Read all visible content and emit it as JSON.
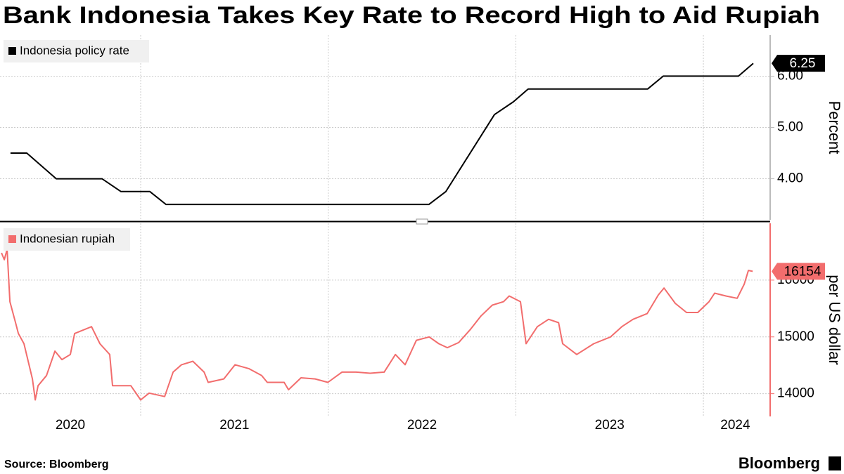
{
  "title": "Bank Indonesia Takes Key Rate to Record High to Aid Rupiah",
  "source": "Source: Bloomberg",
  "brand": "Bloomberg",
  "chart_data": [
    {
      "type": "line",
      "ylabel": "Percent",
      "axis_color": "#bbbbbb",
      "x": [
        2020.306,
        2020.393,
        2020.55,
        2020.794,
        2020.895,
        2021.049,
        2021.135,
        2022.537,
        2022.627,
        2022.886,
        2022.987,
        2023.066,
        2023.703,
        2023.786,
        2024.187,
        2024.266
      ],
      "series": [
        {
          "name": "Indonesia policy rate",
          "color": "#000000",
          "values": [
            4.5,
            4.5,
            4.0,
            4.0,
            3.75,
            3.75,
            3.5,
            3.5,
            3.75,
            5.25,
            5.5,
            5.75,
            5.75,
            6.0,
            6.0,
            6.25
          ]
        }
      ],
      "xlim": [
        2020.25,
        2024.356
      ],
      "ylim": [
        3.2,
        6.8
      ],
      "yticks": [
        {
          "value": 4,
          "label": "4.00"
        },
        {
          "value": 5,
          "label": "5.00"
        },
        {
          "value": 6,
          "label": "6.00"
        }
      ],
      "xgrid": [
        2021,
        2022,
        2023,
        2024
      ],
      "grid": true
    },
    {
      "type": "line",
      "ylabel": "per US dollar",
      "axis_color": "#f26d6d",
      "x": [
        2020.258,
        2020.273,
        2020.288,
        2020.303,
        2020.333,
        2020.348,
        2020.378,
        2020.423,
        2020.438,
        2020.453,
        2020.498,
        2020.543,
        2020.58,
        2020.625,
        2020.648,
        2020.693,
        2020.738,
        2020.783,
        2020.835,
        2020.85,
        2020.948,
        2021.0,
        2021.045,
        2021.128,
        2021.173,
        2021.218,
        2021.278,
        2021.338,
        2021.36,
        2021.443,
        2021.503,
        2021.578,
        2021.645,
        2021.675,
        2021.765,
        2021.788,
        2021.855,
        2021.93,
        2021.998,
        2022.073,
        2022.148,
        2022.223,
        2022.298,
        2022.358,
        2022.41,
        2022.47,
        2022.538,
        2022.59,
        2022.635,
        2022.695,
        2022.755,
        2022.815,
        2022.875,
        2022.935,
        2022.965,
        2023.025,
        2023.055,
        2023.115,
        2023.175,
        2023.228,
        2023.25,
        2023.325,
        2023.415,
        2023.505,
        2023.565,
        2023.625,
        2023.7,
        2023.76,
        2023.79,
        2023.85,
        2023.91,
        2023.97,
        2024.03,
        2024.06,
        2024.12,
        2024.18,
        2024.218,
        2024.24,
        2024.263
      ],
      "series": [
        {
          "name": "Indonesian rupiah",
          "color": "#f26d6d",
          "values": [
            16480,
            16360,
            16540,
            15620,
            15250,
            15060,
            14880,
            14260,
            13890,
            14140,
            14320,
            14750,
            14600,
            14690,
            15060,
            15120,
            15180,
            14880,
            14690,
            14140,
            14140,
            13890,
            14010,
            13950,
            14380,
            14510,
            14570,
            14380,
            14200,
            14260,
            14510,
            14440,
            14320,
            14200,
            14200,
            14070,
            14280,
            14260,
            14200,
            14380,
            14380,
            14360,
            14380,
            14690,
            14510,
            14940,
            15000,
            14880,
            14810,
            14900,
            15120,
            15370,
            15560,
            15620,
            15720,
            15620,
            14880,
            15180,
            15310,
            15250,
            14880,
            14690,
            14880,
            15000,
            15180,
            15310,
            15410,
            15740,
            15860,
            15590,
            15430,
            15430,
            15620,
            15770,
            15720,
            15680,
            15930,
            16170,
            16154
          ]
        }
      ],
      "xlim": [
        2020.25,
        2024.356
      ],
      "ylim": [
        13600,
        17000
      ],
      "yticks": [
        14000,
        15000,
        16000
      ],
      "xgrid": [
        2021,
        2022,
        2023,
        2024
      ],
      "grid": true,
      "xticks": [
        {
          "value": 2020.625,
          "label": "2020"
        },
        {
          "value": 2021.5,
          "label": "2021"
        },
        {
          "value": 2022.5,
          "label": "2022"
        },
        {
          "value": 2023.5,
          "label": "2023"
        },
        {
          "value": 2024.17,
          "label": "2024"
        }
      ]
    }
  ]
}
